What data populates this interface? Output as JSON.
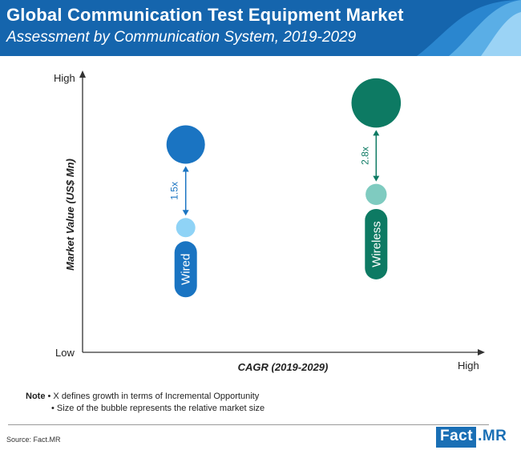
{
  "header": {
    "title": "Global Communication Test Equipment Market",
    "subtitle": "Assessment by Communication System, 2019-2029"
  },
  "colors": {
    "header_blue": "#1565ad",
    "wired_dark": "#1a74c2",
    "wired_light": "#8fd3f6",
    "wireless_dark": "#0d7a63",
    "wireless_light": "#7fcbc0"
  },
  "chart_data": {
    "type": "scatter",
    "xlabel": "CAGR (2019-2029)",
    "ylabel": "Market Value (US$ Mn)",
    "x_axis_labels": {
      "low": "Low",
      "high": "High"
    },
    "y_axis_labels": {
      "low": "Low",
      "high": "High"
    },
    "scale": "qualitative",
    "series": [
      {
        "name": "Wired",
        "growth_label": "1.5x",
        "x": 0.26,
        "values_2019": 0.45,
        "values_2029": 0.75,
        "size_2019": 0.3,
        "size_2029": 0.6
      },
      {
        "name": "Wireless",
        "growth_label": "2.8x",
        "x": 0.74,
        "values_2019": 0.57,
        "values_2029": 0.9,
        "size_2019": 0.33,
        "size_2029": 0.77
      }
    ]
  },
  "note": {
    "label": "Note",
    "line1": "• X defines growth in terms of Incremental Opportunity",
    "line2": "• Size of the bubble represents the relative market size"
  },
  "source": "Source: Fact.MR",
  "logo": {
    "part1": "Fact",
    "part2": ".MR"
  }
}
